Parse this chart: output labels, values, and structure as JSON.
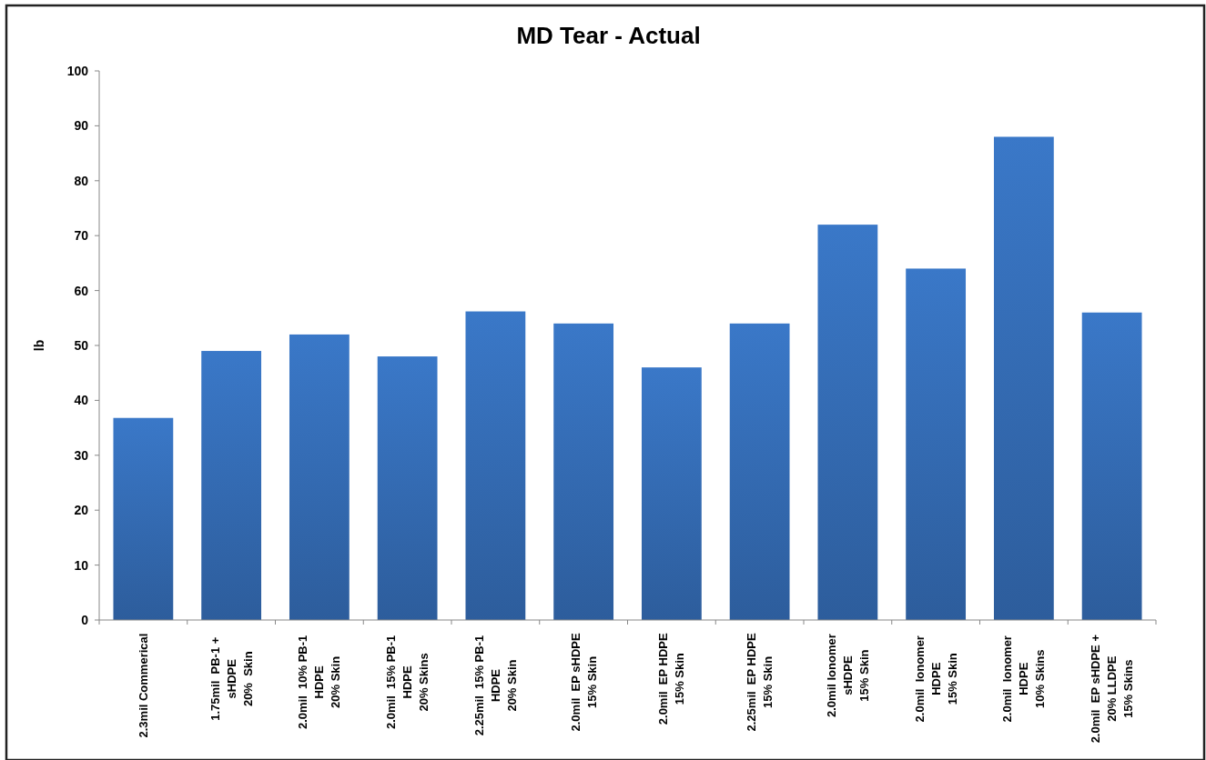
{
  "chart_data": {
    "type": "bar",
    "title": "MD Tear - Actual",
    "ylabel": "lb",
    "categories": [
      "2.3mil Commerical",
      "1.75mil  PB-1 +\nsHDPE\n20%  Skin",
      "2.0mil  10% PB-1\nHDPE\n20% Skin",
      "2.0mil  15% PB-1\nHDPE\n20% Skins",
      "2.25mil  15% PB-1\nHDPE\n20% Skin",
      "2.0mil  EP sHDPE\n15% Skin",
      "2.0mil  EP HDPE\n15% Skin",
      "2.25mil  EP HDPE\n15% Skin",
      "2.0mil Ionomer\nsHDPE\n15% Skin",
      "2.0mil  Ionomer\nHDPE\n15% Skin",
      "2.0mil  Ionomer\nHDPE\n10% Skins",
      "2.0mil  EP sHDPE +\n20% LLDPE\n15% Skins"
    ],
    "values": [
      36.8,
      49,
      52,
      48,
      56.2,
      54,
      46,
      54,
      72,
      64,
      88,
      56
    ],
    "color": "#3a78c8",
    "ylim": [
      0,
      100
    ],
    "yticks": [
      0,
      10,
      20,
      30,
      40,
      50,
      60,
      70,
      80,
      90,
      100
    ],
    "grid": false
  }
}
